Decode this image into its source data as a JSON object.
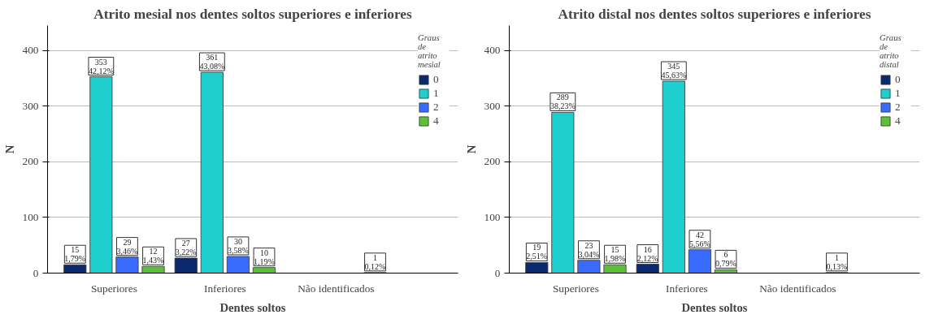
{
  "chart_data": [
    {
      "type": "bar",
      "title": "Atrito mesial nos dentes soltos superiores e inferiores",
      "xlabel": "Dentes soltos",
      "ylabel": "N",
      "legend_title": "Graus\nde\natrito\nmesial",
      "categories": [
        "Superiores",
        "Inferiores",
        "Não identificados"
      ],
      "ylim": [
        0,
        445
      ],
      "yticks": [
        0,
        100,
        200,
        300,
        400
      ],
      "grid": "y",
      "legend": "right",
      "series": [
        {
          "name": "0",
          "color": "#0b2a6e",
          "values": [
            15,
            27,
            null
          ],
          "value_labels": [
            "15\n1,79%",
            "27\n3,22%",
            null
          ]
        },
        {
          "name": "1",
          "color": "#1fcfcf",
          "values": [
            353,
            361,
            null
          ],
          "value_labels": [
            "353\n42,12%",
            "361\n43,08%",
            null
          ]
        },
        {
          "name": "2",
          "color": "#3a6bff",
          "values": [
            29,
            30,
            null
          ],
          "value_labels": [
            "29\n3,46%",
            "30\n3,58%",
            null
          ]
        },
        {
          "name": "4",
          "color": "#5cbf3a",
          "values": [
            12,
            10,
            1
          ],
          "value_labels": [
            "12\n1,43%",
            "10\n1,19%",
            "1\n0,12%"
          ]
        }
      ]
    },
    {
      "type": "bar",
      "title": "Atrito distal nos dentes soltos superiores e inferiores",
      "xlabel": "Dentes soltos",
      "ylabel": "N",
      "legend_title": "Graus\nde\natrito\ndistal",
      "categories": [
        "Superiores",
        "Inferiores",
        "Não identificados"
      ],
      "ylim": [
        0,
        445
      ],
      "yticks": [
        0,
        100,
        200,
        300,
        400
      ],
      "grid": "y",
      "legend": "right",
      "series": [
        {
          "name": "0",
          "color": "#0b2a6e",
          "values": [
            19,
            16,
            null
          ],
          "value_labels": [
            "19\n2,51%",
            "16\n2,12%",
            null
          ]
        },
        {
          "name": "1",
          "color": "#1fcfcf",
          "values": [
            289,
            345,
            null
          ],
          "value_labels": [
            "289\n38,23%",
            "345\n45,63%",
            null
          ]
        },
        {
          "name": "2",
          "color": "#3a6bff",
          "values": [
            23,
            42,
            null
          ],
          "value_labels": [
            "23\n3,04%",
            "42\n5,56%",
            null
          ]
        },
        {
          "name": "4",
          "color": "#5cbf3a",
          "values": [
            15,
            6,
            1
          ],
          "value_labels": [
            "15\n1,98%",
            "6\n0,79%",
            "1\n0,13%"
          ]
        }
      ]
    }
  ]
}
